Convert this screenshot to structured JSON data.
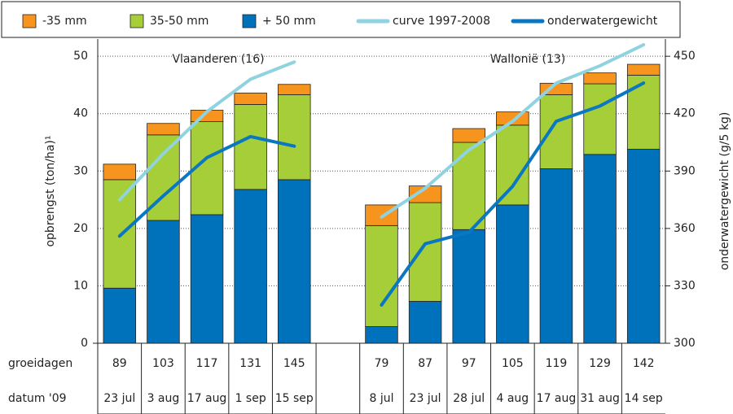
{
  "chart_data": {
    "type": "bar",
    "stacked": true,
    "y_label": "opbrengst  (ton/ha)¹",
    "y2_label": "onderwatergewicht (g/5 kg)",
    "annotations": [
      "Vlaanderen (16)",
      "Wallonië (13)"
    ],
    "growth_days_label": "groeidagen",
    "growth_days": [
      89,
      103,
      117,
      131,
      145,
      null,
      79,
      87,
      97,
      105,
      119,
      129,
      142
    ],
    "category_label": "datum '09",
    "categories": [
      "23 jul",
      "3 aug",
      "17 aug",
      "1 sep",
      "15 sep",
      null,
      "8 jul",
      "23 jul",
      "28 jul",
      "4 aug",
      "17 aug",
      "31 aug",
      "14 sep"
    ],
    "ylim": [
      0,
      53
    ],
    "yticks": [
      0,
      10,
      20,
      30,
      40,
      50
    ],
    "y2lim": [
      300,
      459
    ],
    "y2ticks": [
      300,
      330,
      360,
      390,
      420,
      450
    ],
    "grid": true,
    "series": [
      {
        "name": "-35 mm",
        "type": "bar",
        "color": "#f7941d",
        "values": [
          2.7,
          2.0,
          2.0,
          2.0,
          1.8,
          null,
          3.6,
          2.9,
          2.4,
          2.3,
          2.0,
          1.9,
          1.9
        ]
      },
      {
        "name": "35-50 mm",
        "type": "bar",
        "color": "#a6ce39",
        "values": [
          18.9,
          14.9,
          16.2,
          14.8,
          14.8,
          null,
          17.6,
          17.2,
          15.2,
          13.9,
          12.9,
          12.3,
          12.9
        ]
      },
      {
        "name": "+ 50 mm",
        "type": "bar",
        "color": "#0072bc",
        "values": [
          9.6,
          21.4,
          22.4,
          26.8,
          28.5,
          null,
          2.9,
          7.3,
          19.8,
          24.1,
          30.4,
          32.9,
          33.8
        ]
      },
      {
        "name": "curve 1997-2008",
        "type": "line",
        "axis": "y2",
        "color": "#8fd3e0",
        "values": [
          375,
          399,
          421,
          438,
          447,
          null,
          366,
          381,
          401,
          416,
          436,
          445,
          456
        ]
      },
      {
        "name": "onderwatergewicht",
        "type": "line",
        "axis": "y2",
        "color": "#0a77c0",
        "values": [
          356,
          377,
          397,
          408,
          403,
          null,
          320,
          352,
          358,
          382,
          416,
          424,
          436
        ]
      }
    ]
  }
}
